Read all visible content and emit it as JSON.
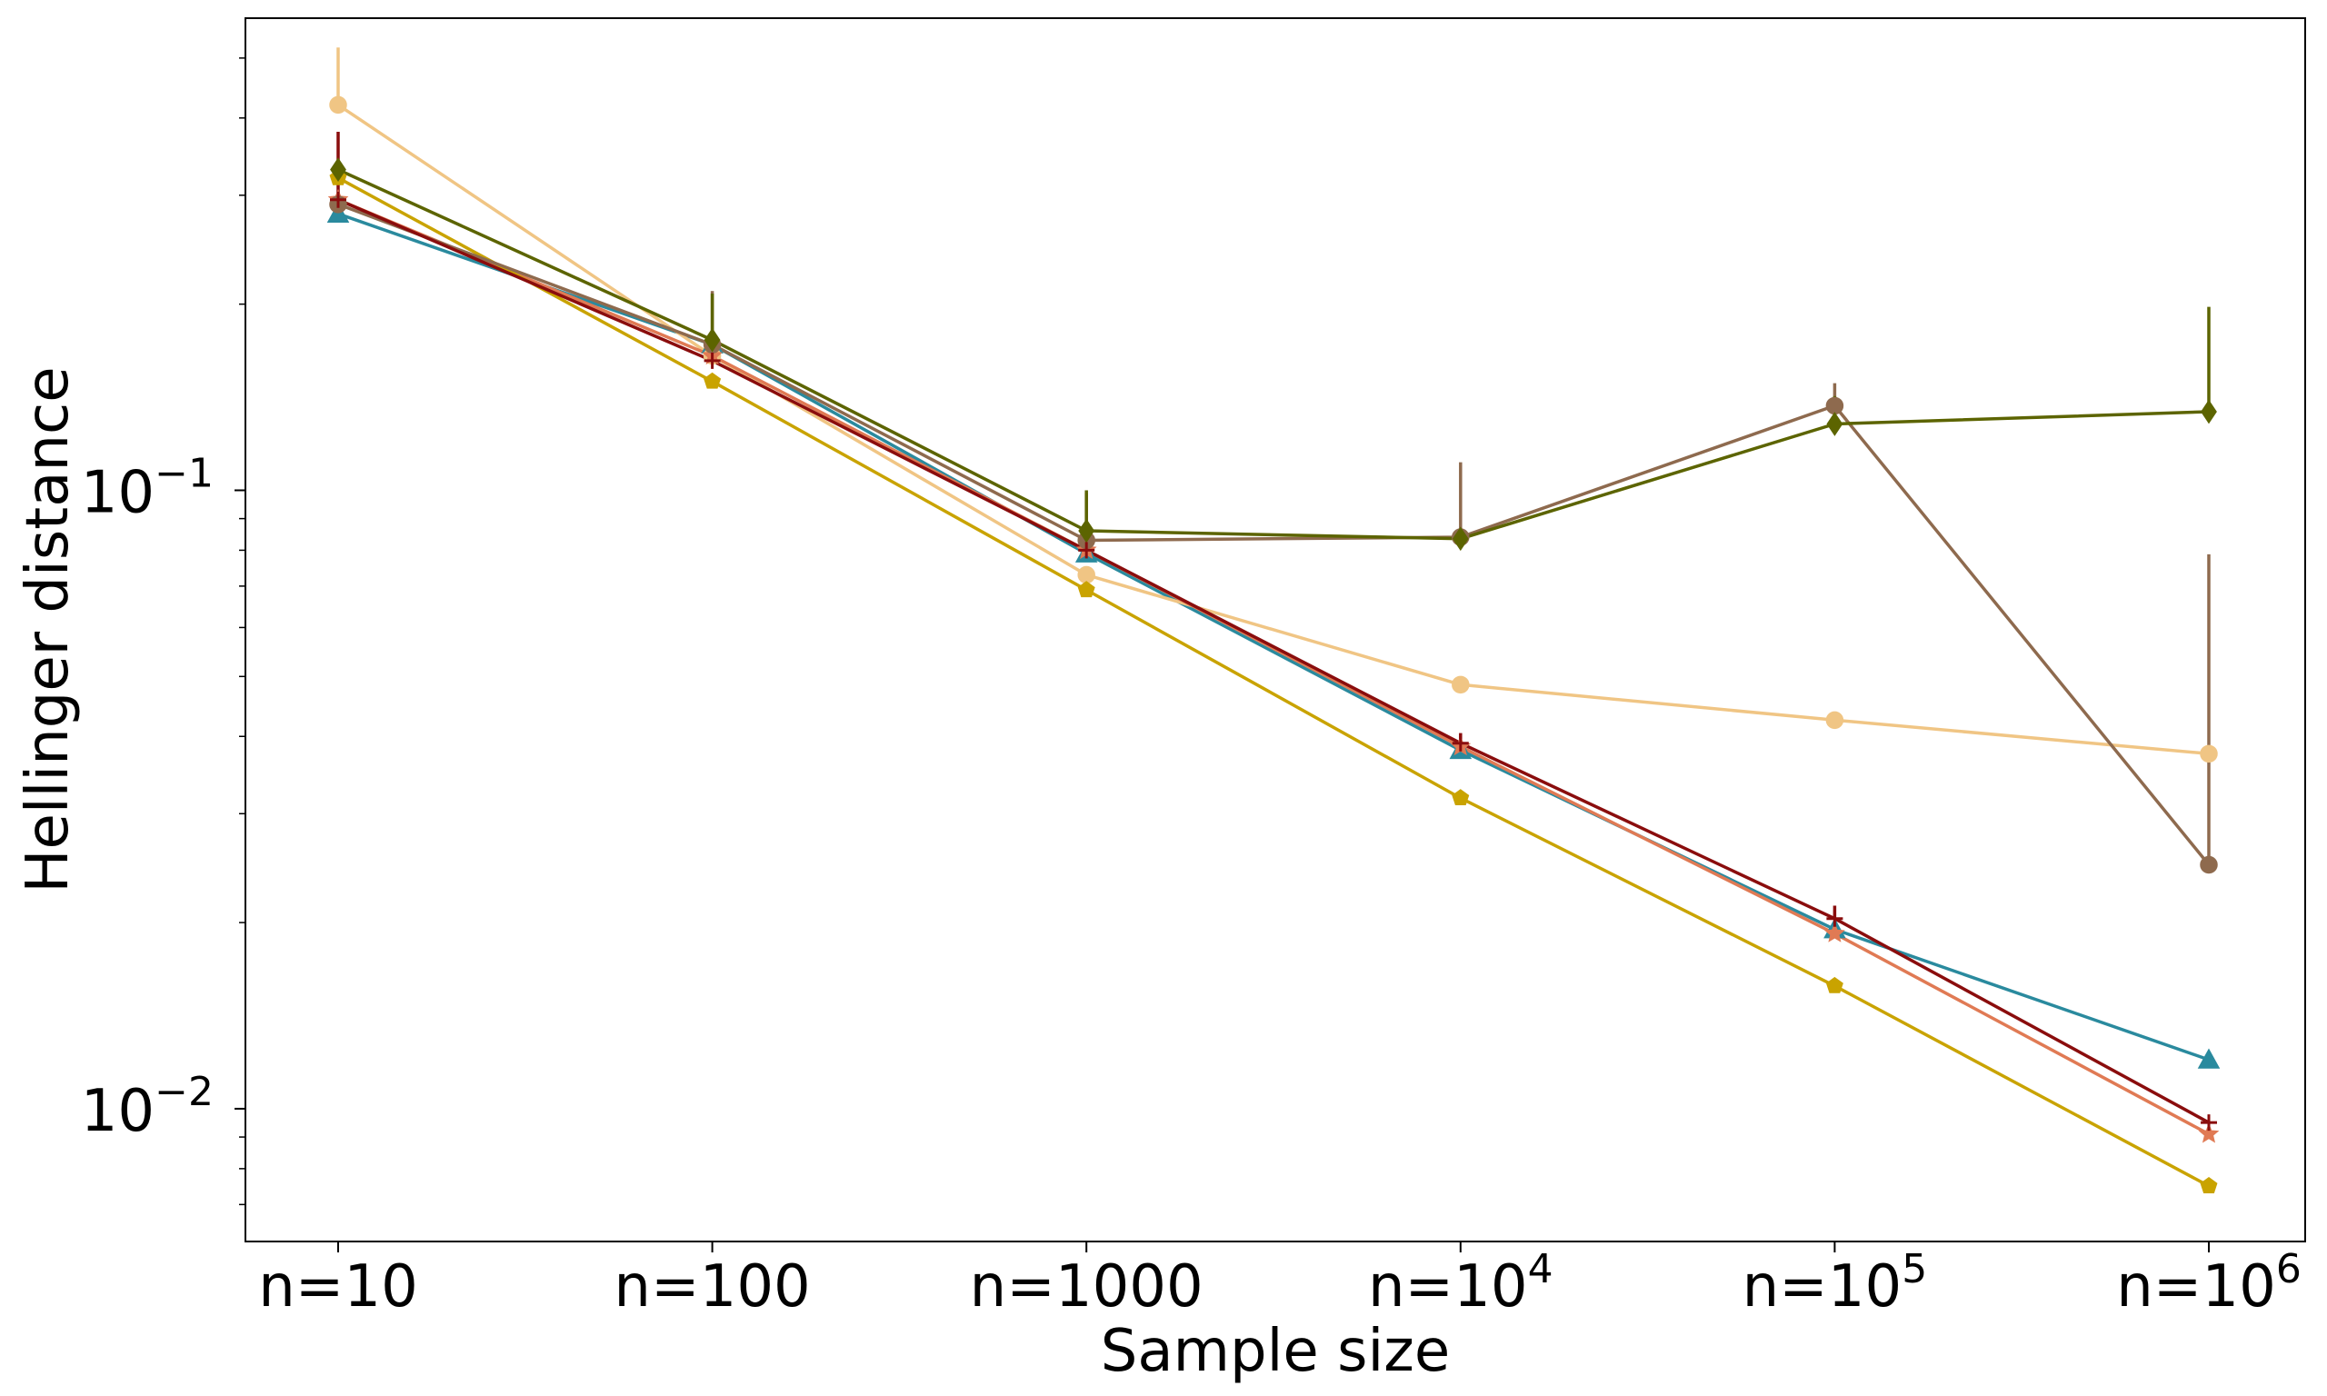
{
  "chart_data": {
    "type": "line",
    "xlabel": "Sample size",
    "ylabel": "Hellinger distance",
    "y_scale": "log",
    "ylim": [
      0.0061,
      0.58
    ],
    "grid": false,
    "legend": "none",
    "x": [
      10,
      100,
      1000,
      10000,
      100000,
      1000000
    ],
    "x_tick_labels": [
      {
        "base": "n=10",
        "sup": ""
      },
      {
        "base": "n=100",
        "sup": ""
      },
      {
        "base": "n=1000",
        "sup": ""
      },
      {
        "base": "n=10",
        "sup": "4"
      },
      {
        "base": "n=10",
        "sup": "5"
      },
      {
        "base": "n=10",
        "sup": "6"
      }
    ],
    "y_ticks": [
      {
        "value": 0.1,
        "base": "10",
        "sup": "−1"
      },
      {
        "value": 0.01,
        "base": "10",
        "sup": "−2"
      }
    ],
    "series": [
      {
        "color": "#2a8a9e",
        "marker": "triangle",
        "values": [
          0.28,
          0.172,
          0.079,
          0.038,
          0.0195,
          0.012
        ],
        "err_up": [
          0,
          0,
          0,
          0,
          0,
          0
        ]
      },
      {
        "color": "#f0c584",
        "marker": "circle",
        "values": [
          0.42,
          0.165,
          0.073,
          0.0485,
          0.0425,
          0.0375
        ],
        "err_up": [
          0.1,
          0,
          0,
          0,
          0,
          0
        ]
      },
      {
        "color": "#e07a54",
        "marker": "star",
        "values": [
          0.295,
          0.165,
          0.08,
          0.0385,
          0.0192,
          0.0091
        ],
        "err_up": [
          0,
          0,
          0,
          0,
          0,
          0
        ]
      },
      {
        "color": "#c9a300",
        "marker": "pentagon",
        "values": [
          0.32,
          0.15,
          0.069,
          0.0318,
          0.0158,
          0.0075
        ],
        "err_up": [
          0,
          0,
          0,
          0,
          0,
          0
        ]
      },
      {
        "color": "#8e6a4e",
        "marker": "circle",
        "values": [
          0.29,
          0.172,
          0.083,
          0.084,
          0.137,
          0.0248
        ],
        "err_up": [
          0,
          0.038,
          0.016,
          0.027,
          0.012,
          0.054
        ]
      },
      {
        "color": "#5c6400",
        "marker": "diamond",
        "values": [
          0.33,
          0.175,
          0.086,
          0.0835,
          0.128,
          0.134
        ],
        "err_up": [
          0,
          0.033,
          0.014,
          0,
          0.014,
          0.064
        ]
      },
      {
        "color": "#8a0d0d",
        "marker": "plus",
        "values": [
          0.295,
          0.162,
          0.08,
          0.039,
          0.0203,
          0.0095
        ],
        "err_up": [
          0.085,
          0,
          0,
          0.0015,
          0.001,
          0
        ]
      }
    ]
  }
}
